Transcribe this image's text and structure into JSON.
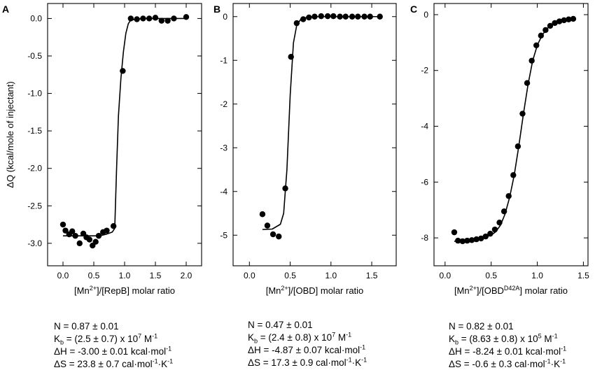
{
  "chart_data": [
    {
      "type": "scatter",
      "panel_label": "A",
      "title": "",
      "ylabel": "ΔQ (kcal/mole of injectant)",
      "xlabel_parts": [
        {
          "t": "[Mn"
        },
        {
          "t": "2+",
          "sup": true
        },
        {
          "t": "]/[RepB] molar ratio"
        }
      ],
      "xlim": [
        -0.25,
        2.25
      ],
      "ylim": [
        -3.3,
        0.2
      ],
      "xticks": [
        0.0,
        0.5,
        1.0,
        1.5,
        2.0
      ],
      "xtick_labels": [
        "0.0",
        "0.5",
        "1.0",
        "1.5",
        "2.0"
      ],
      "yticks": [
        0.0,
        -0.5,
        -1.0,
        -1.5,
        -2.0,
        -2.5,
        -3.0
      ],
      "ytick_labels": [
        "0.0",
        "-0.5",
        "-1.0",
        "-1.5",
        "-2.0",
        "-2.5",
        "-3.0"
      ],
      "grid": false,
      "points": {
        "x": [
          0.0,
          0.04,
          0.1,
          0.15,
          0.2,
          0.27,
          0.33,
          0.38,
          0.43,
          0.48,
          0.53,
          0.58,
          0.65,
          0.71,
          0.82,
          0.97,
          1.1,
          1.2,
          1.3,
          1.4,
          1.5,
          1.6,
          1.7,
          1.8,
          2.0
        ],
        "y": [
          -2.75,
          -2.83,
          -2.88,
          -2.84,
          -2.9,
          -3.0,
          -2.87,
          -2.92,
          -2.95,
          -3.03,
          -2.98,
          -2.9,
          -2.85,
          -2.83,
          -2.77,
          -0.7,
          0.0,
          -0.01,
          0.0,
          0.0,
          0.01,
          -0.03,
          -0.03,
          0.0,
          0.02
        ]
      },
      "fit": {
        "x": [
          0.0,
          0.2,
          0.4,
          0.6,
          0.7,
          0.8,
          0.84,
          0.87,
          0.9,
          0.94,
          0.98,
          1.02,
          1.06,
          1.1,
          1.3,
          1.6,
          2.0
        ],
        "y": [
          -2.9,
          -2.9,
          -2.9,
          -2.9,
          -2.88,
          -2.85,
          -2.8,
          -2.0,
          -1.3,
          -0.8,
          -0.45,
          -0.2,
          -0.07,
          -0.02,
          0.0,
          0.0,
          0.0
        ]
      },
      "params": [
        {
          "parts": [
            {
              "t": "N = 0.87 ± 0.01"
            }
          ]
        },
        {
          "parts": [
            {
              "t": "K"
            },
            {
              "t": "b",
              "sub": true
            },
            {
              "t": " = (2.5 ± 0.7) x 10"
            },
            {
              "t": "7",
              "sup": true
            },
            {
              "t": " M"
            },
            {
              "t": "-1",
              "sup": true
            }
          ]
        },
        {
          "parts": [
            {
              "t": "ΔH = -3.00 ± 0.01 kcal·mol"
            },
            {
              "t": "-1",
              "sup": true
            }
          ]
        },
        {
          "parts": [
            {
              "t": "ΔS = 23.8 ± 0.7 cal·mol"
            },
            {
              "t": "-1",
              "sup": true
            },
            {
              "t": "·K"
            },
            {
              "t": "-1",
              "sup": true
            }
          ]
        }
      ]
    },
    {
      "type": "scatter",
      "panel_label": "B",
      "title": "",
      "ylabel": "",
      "xlabel_parts": [
        {
          "t": "[Mn"
        },
        {
          "t": "2+",
          "sup": true
        },
        {
          "t": "]/[OBD] molar ratio"
        }
      ],
      "xlim": [
        -0.2,
        1.8
      ],
      "ylim": [
        -5.7,
        0.3
      ],
      "xticks": [
        0.0,
        0.5,
        1.0,
        1.5
      ],
      "xtick_labels": [
        "0.0",
        "0.5",
        "1.0",
        "1.5"
      ],
      "yticks": [
        0,
        -1,
        -2,
        -3,
        -4,
        -5
      ],
      "ytick_labels": [
        "0",
        "-1",
        "-2",
        "-3",
        "-4",
        "-5"
      ],
      "grid": false,
      "points": {
        "x": [
          0.16,
          0.22,
          0.29,
          0.36,
          0.44,
          0.51,
          0.58,
          0.66,
          0.73,
          0.8,
          0.88,
          0.96,
          1.03,
          1.11,
          1.18,
          1.26,
          1.33,
          1.41,
          1.48,
          1.6
        ],
        "y": [
          -4.52,
          -4.78,
          -4.98,
          -5.03,
          -3.93,
          -0.92,
          -0.15,
          -0.06,
          -0.02,
          0.0,
          0.01,
          0.01,
          0.01,
          0.0,
          0.0,
          0.0,
          0.0,
          0.0,
          0.0,
          0.0
        ]
      },
      "fit": {
        "x": [
          0.16,
          0.28,
          0.38,
          0.42,
          0.46,
          0.5,
          0.54,
          0.58,
          0.63,
          0.7,
          0.8,
          1.0,
          1.3,
          1.6
        ],
        "y": [
          -4.87,
          -4.86,
          -4.75,
          -4.5,
          -3.5,
          -1.8,
          -0.6,
          -0.2,
          -0.06,
          -0.02,
          0.0,
          0.0,
          0.0,
          0.0
        ]
      },
      "params": [
        {
          "parts": [
            {
              "t": "N = 0.47 ± 0.01"
            }
          ]
        },
        {
          "parts": [
            {
              "t": "K"
            },
            {
              "t": "b",
              "sub": true
            },
            {
              "t": " = (2.4 ± 0.8) x 10"
            },
            {
              "t": "7",
              "sup": true
            },
            {
              "t": " M"
            },
            {
              "t": "-1",
              "sup": true
            }
          ]
        },
        {
          "parts": [
            {
              "t": "ΔH = -4.87 ± 0.07 kcal·mol"
            },
            {
              "t": "-1",
              "sup": true
            }
          ]
        },
        {
          "parts": [
            {
              "t": "ΔS = 17.3 ± 0.9 cal·mol"
            },
            {
              "t": "-1",
              "sup": true
            },
            {
              "t": "·K"
            },
            {
              "t": "-1",
              "sup": true
            }
          ]
        }
      ]
    },
    {
      "type": "scatter",
      "panel_label": "C",
      "title": "",
      "ylabel": "",
      "xlabel_parts": [
        {
          "t": "[Mn"
        },
        {
          "t": "2+",
          "sup": true
        },
        {
          "t": "]/[OBD"
        },
        {
          "t": "D42A",
          "sup": true
        },
        {
          "t": "] molar ratio"
        }
      ],
      "xlim": [
        -0.12,
        1.55
      ],
      "ylim": [
        -9.0,
        0.4
      ],
      "xticks": [
        0.0,
        0.5,
        1.0,
        1.5
      ],
      "xtick_labels": [
        "0.0",
        "0.5",
        "1.0",
        "1.5"
      ],
      "yticks": [
        0,
        -2,
        -4,
        -6,
        -8
      ],
      "ytick_labels": [
        "0",
        "-2",
        "-4",
        "-6",
        "-8"
      ],
      "grid": false,
      "points": {
        "x": [
          0.1,
          0.14,
          0.19,
          0.24,
          0.29,
          0.34,
          0.39,
          0.44,
          0.49,
          0.54,
          0.59,
          0.64,
          0.69,
          0.74,
          0.79,
          0.84,
          0.89,
          0.94,
          0.99,
          1.04,
          1.09,
          1.14,
          1.19,
          1.24,
          1.29,
          1.34,
          1.39
        ],
        "y": [
          -7.8,
          -8.1,
          -8.12,
          -8.1,
          -8.08,
          -8.05,
          -8.02,
          -7.95,
          -7.85,
          -7.7,
          -7.45,
          -7.05,
          -6.5,
          -5.75,
          -4.72,
          -3.55,
          -2.45,
          -1.65,
          -1.1,
          -0.75,
          -0.55,
          -0.4,
          -0.3,
          -0.24,
          -0.2,
          -0.17,
          -0.15
        ]
      },
      "fit": {
        "x": [
          0.1,
          0.2,
          0.3,
          0.4,
          0.5,
          0.55,
          0.6,
          0.65,
          0.7,
          0.75,
          0.8,
          0.85,
          0.9,
          0.95,
          1.0,
          1.05,
          1.1,
          1.15,
          1.2,
          1.3,
          1.39
        ],
        "y": [
          -8.12,
          -8.1,
          -8.07,
          -8.02,
          -7.9,
          -7.78,
          -7.55,
          -7.15,
          -6.55,
          -5.75,
          -4.7,
          -3.55,
          -2.5,
          -1.65,
          -1.1,
          -0.75,
          -0.52,
          -0.38,
          -0.28,
          -0.19,
          -0.14
        ]
      },
      "params": [
        {
          "parts": [
            {
              "t": "N = 0.82 ± 0.01"
            }
          ]
        },
        {
          "parts": [
            {
              "t": "K"
            },
            {
              "t": "b",
              "sub": true
            },
            {
              "t": " = (8.63 ± 0.8) x 10"
            },
            {
              "t": "5",
              "sup": true
            },
            {
              "t": " M"
            },
            {
              "t": "-1",
              "sup": true
            }
          ]
        },
        {
          "parts": [
            {
              "t": "ΔH = -8.24 ± 0.01 kcal·mol"
            },
            {
              "t": "-1",
              "sup": true
            }
          ]
        },
        {
          "parts": [
            {
              "t": "ΔS = -0.6 ± 0.3 cal·mol"
            },
            {
              "t": "-1",
              "sup": true
            },
            {
              "t": "·K"
            },
            {
              "t": "-1",
              "sup": true
            }
          ]
        }
      ]
    }
  ]
}
